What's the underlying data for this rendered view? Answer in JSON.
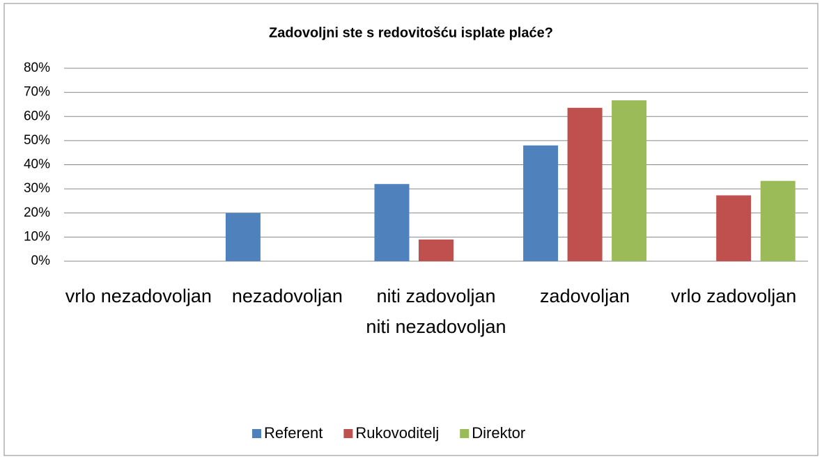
{
  "chart_data": {
    "type": "bar",
    "title": "Zadovoljni ste s redovitošću isplate plaće?",
    "categories": [
      "vrlo nezadovoljan",
      "nezadovoljan",
      "niti zadovoljan niti nezadovoljan",
      "zadovoljan",
      "vrlo zadovoljan"
    ],
    "series": [
      {
        "name": "Referent",
        "color": "#4f81bd",
        "values": [
          0,
          20,
          32,
          48,
          0
        ]
      },
      {
        "name": "Rukovoditelj",
        "color": "#c0504d",
        "values": [
          0,
          0,
          9,
          63.6,
          27.3
        ]
      },
      {
        "name": "Direktor",
        "color": "#9bbb59",
        "values": [
          0,
          0,
          0,
          66.7,
          33.3
        ]
      }
    ],
    "ylim": [
      0,
      80
    ],
    "yticks": [
      {
        "value": 0,
        "label": "0%"
      },
      {
        "value": 10,
        "label": "10%"
      },
      {
        "value": 20,
        "label": "20%"
      },
      {
        "value": 30,
        "label": "30%"
      },
      {
        "value": 40,
        "label": "40%"
      },
      {
        "value": 50,
        "label": "50%"
      },
      {
        "value": 60,
        "label": "60%"
      },
      {
        "value": 70,
        "label": "70%"
      },
      {
        "value": 80,
        "label": "80%"
      }
    ],
    "grid": true,
    "legend": "bottom"
  }
}
